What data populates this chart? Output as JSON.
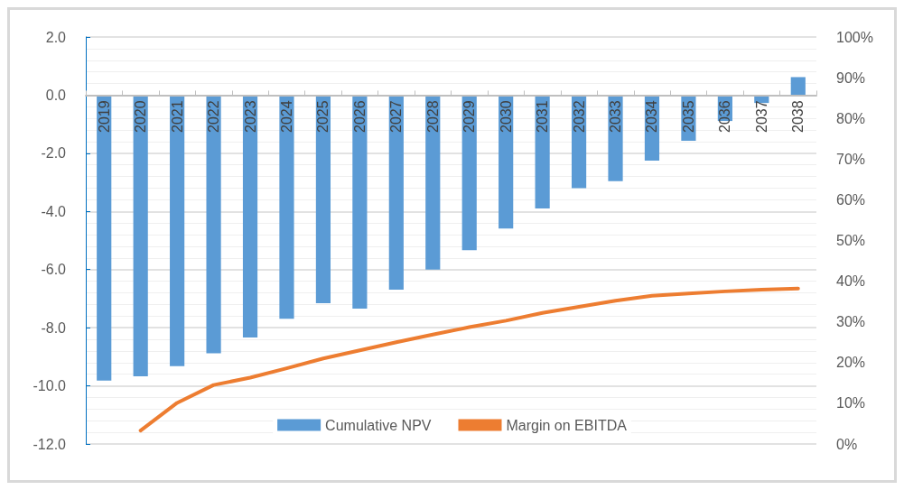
{
  "chart_data": {
    "type": "bar",
    "categories": [
      "2019",
      "2020",
      "2021",
      "2022",
      "2023",
      "2024",
      "2025",
      "2026",
      "2027",
      "2028",
      "2029",
      "2030",
      "2031",
      "2032",
      "2033",
      "2034",
      "2035",
      "2036",
      "2037",
      "2038"
    ],
    "series": [
      {
        "name": "Cumulative NPV",
        "color": "#5b9bd5",
        "values": [
          -9.82,
          -9.67,
          -9.32,
          -8.88,
          -8.34,
          -7.69,
          -7.16,
          -7.34,
          -6.69,
          -6.0,
          -5.33,
          -4.59,
          -3.9,
          -3.2,
          -2.96,
          -2.25,
          -1.57,
          -0.89,
          -0.27,
          0.62
        ]
      },
      {
        "name": "Margin on EBITDA",
        "type": "line",
        "axis": "y2",
        "color": "#ed7d31",
        "values": [
          null,
          3.3,
          10.1,
          14.5,
          16.3,
          18.6,
          21,
          23,
          25,
          26.9,
          28.7,
          30.3,
          32.2,
          33.7,
          35.2,
          36.4,
          37,
          37.5,
          37.9,
          38.2
        ]
      }
    ],
    "ylim": [
      -12,
      2
    ],
    "yticks": [
      {
        "value": -12,
        "label": "-12.0"
      },
      {
        "value": -10,
        "label": "-10.0"
      },
      {
        "value": -8,
        "label": "-8.0"
      },
      {
        "value": -6,
        "label": "-6.0"
      },
      {
        "value": -4,
        "label": "-4.0"
      },
      {
        "value": -2,
        "label": "-2.0"
      },
      {
        "value": 0,
        "label": "0.0"
      },
      {
        "value": 2,
        "label": "2.0"
      }
    ],
    "y2lim": [
      0,
      100
    ],
    "y2ticks": [
      {
        "value": 0,
        "label": "0%"
      },
      {
        "value": 10,
        "label": "10%"
      },
      {
        "value": 20,
        "label": "20%"
      },
      {
        "value": 30,
        "label": "30%"
      },
      {
        "value": 40,
        "label": "40%"
      },
      {
        "value": 50,
        "label": "50%"
      },
      {
        "value": 60,
        "label": "60%"
      },
      {
        "value": 70,
        "label": "70%"
      },
      {
        "value": 80,
        "label": "80%"
      },
      {
        "value": 90,
        "label": "90%"
      },
      {
        "value": 100,
        "label": "100%"
      }
    ],
    "grid": "y",
    "legend": "bottom",
    "marker": "none"
  }
}
